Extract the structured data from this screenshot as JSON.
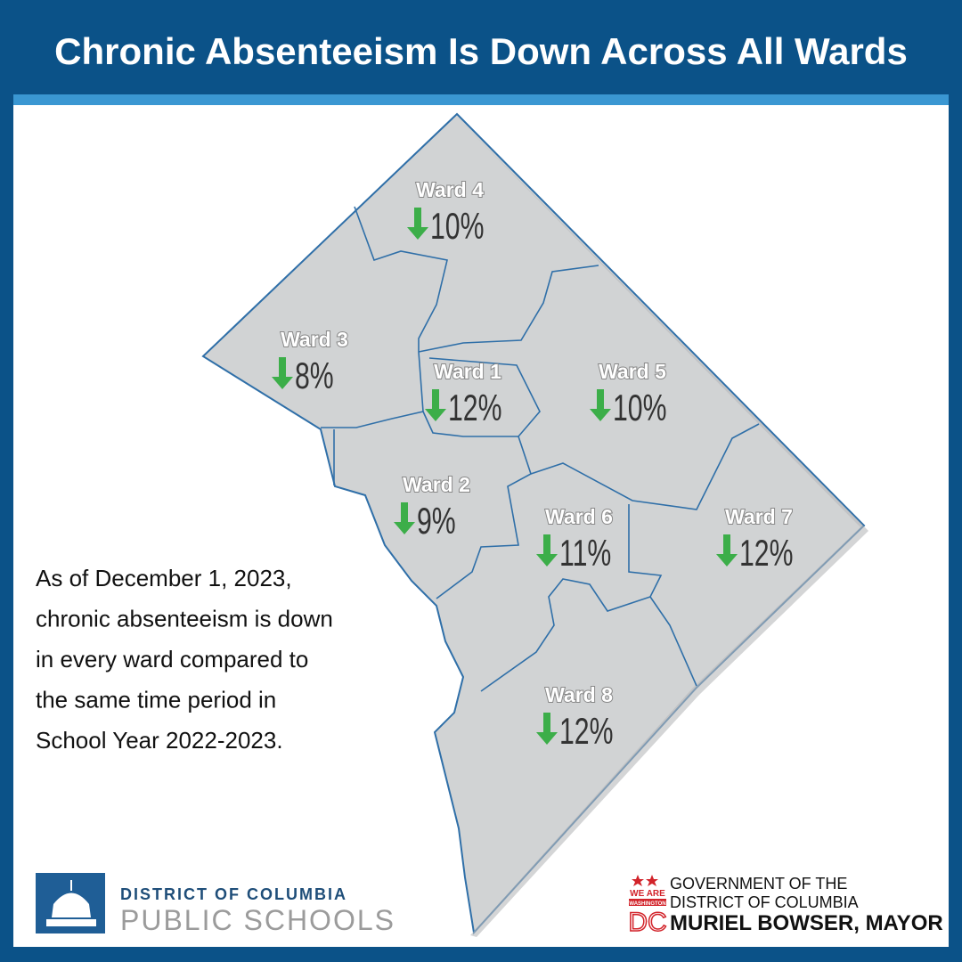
{
  "header": {
    "title": "Chronic Absenteeism Is Down Across All Wards"
  },
  "wards": [
    {
      "name": "Ward 4",
      "change": "10%"
    },
    {
      "name": "Ward 3",
      "change": "8%"
    },
    {
      "name": "Ward 1",
      "change": "12%"
    },
    {
      "name": "Ward 5",
      "change": "10%"
    },
    {
      "name": "Ward 2",
      "change": "9%"
    },
    {
      "name": "Ward 6",
      "change": "11%"
    },
    {
      "name": "Ward 7",
      "change": "12%"
    },
    {
      "name": "Ward 8",
      "change": "12%"
    }
  ],
  "body": {
    "lines": [
      "As of December 1, 2023,",
      "chronic absenteeism is down",
      "in every ward compared to",
      "the same time period in",
      "School Year 2022-2023."
    ]
  },
  "footer": {
    "dcps": {
      "line1": "DISTRICT OF COLUMBIA",
      "line2": "PUBLIC SCHOOLS"
    },
    "government": {
      "badge_top": "WE ARE",
      "badge_middle": "WASHINGTON",
      "badge_bottom": "DC",
      "line1": "GOVERNMENT OF THE",
      "line2": "DISTRICT OF COLUMBIA",
      "line3": "MURIEL BOWSER, MAYOR"
    }
  }
}
